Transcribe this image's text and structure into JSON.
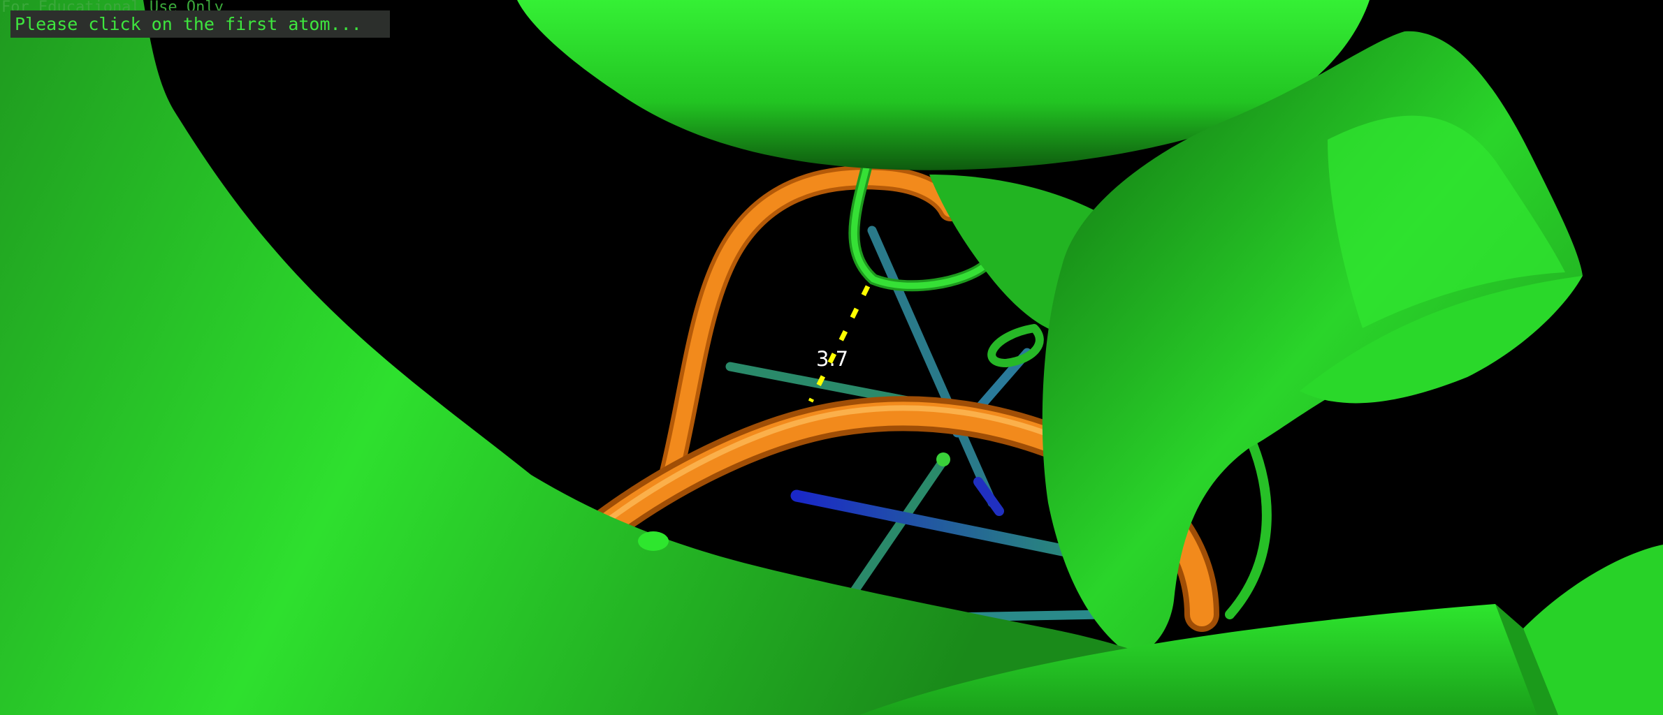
{
  "viewer": {
    "watermark": "For Educational Use Only",
    "prompt": "Please click on the first atom...",
    "measurement": {
      "distance": "3.7"
    }
  },
  "colors": {
    "background": "#000000",
    "protein_cartoon": "#2ee62e",
    "nucleic_backbone": "#f07f10",
    "nucleic_bases": "#2a8a9a",
    "base_blue": "#2030c0",
    "measure_dash": "#ffff00",
    "prompt_bg": "#2c2f2c",
    "prompt_text": "#3ee63e",
    "watermark_text": "#3ba83b"
  },
  "scene_objects": [
    "protein-helix-cartoon",
    "dna-backbone-tube",
    "dna-base-sticks",
    "distance-measurement"
  ]
}
